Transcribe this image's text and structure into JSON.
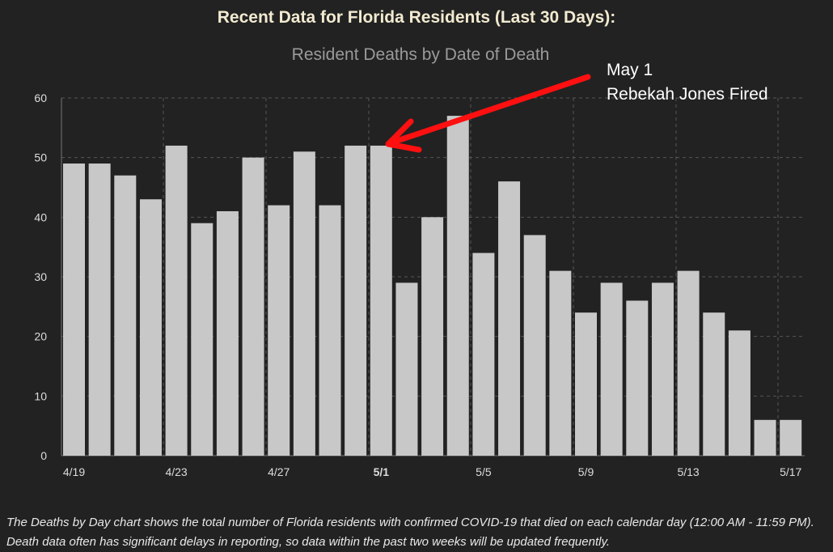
{
  "header": {
    "title": "Recent Data for Florida Residents (Last 30 Days):"
  },
  "annotation": {
    "line1": "May 1",
    "line2": "Rebekah Jones Fired",
    "arrow_color": "#ff1010"
  },
  "footer": {
    "text": "The Deaths by Day chart shows the total number of Florida residents with confirmed COVID-19 that died on each calendar day (12:00 AM - 11:59 PM). Death data often has significant delays in reporting, so data within the past two weeks will be updated frequently."
  },
  "chart_data": {
    "type": "bar",
    "title": "Resident Deaths by Date of Death",
    "xlabel": "",
    "ylabel": "",
    "ylim": [
      0,
      60
    ],
    "yticks": [
      0,
      10,
      20,
      30,
      40,
      50,
      60
    ],
    "categories": [
      "4/19",
      "4/20",
      "4/21",
      "4/22",
      "4/23",
      "4/24",
      "4/25",
      "4/26",
      "4/27",
      "4/28",
      "4/29",
      "4/30",
      "5/1",
      "5/2",
      "5/3",
      "5/4",
      "5/5",
      "5/6",
      "5/7",
      "5/8",
      "5/9",
      "5/10",
      "5/11",
      "5/12",
      "5/13",
      "5/14",
      "5/15",
      "5/16",
      "5/17"
    ],
    "values": [
      49,
      49,
      47,
      43,
      52,
      39,
      41,
      50,
      42,
      51,
      42,
      52,
      52,
      29,
      40,
      57,
      34,
      46,
      37,
      31,
      24,
      29,
      26,
      29,
      31,
      24,
      21,
      6,
      6
    ],
    "xtick_labels": [
      "4/19",
      "4/23",
      "4/27",
      "5/1",
      "5/5",
      "5/9",
      "5/13",
      "5/17"
    ],
    "bold_tick": "5/1",
    "bar_color": "#c8c8c8",
    "grid": true
  }
}
